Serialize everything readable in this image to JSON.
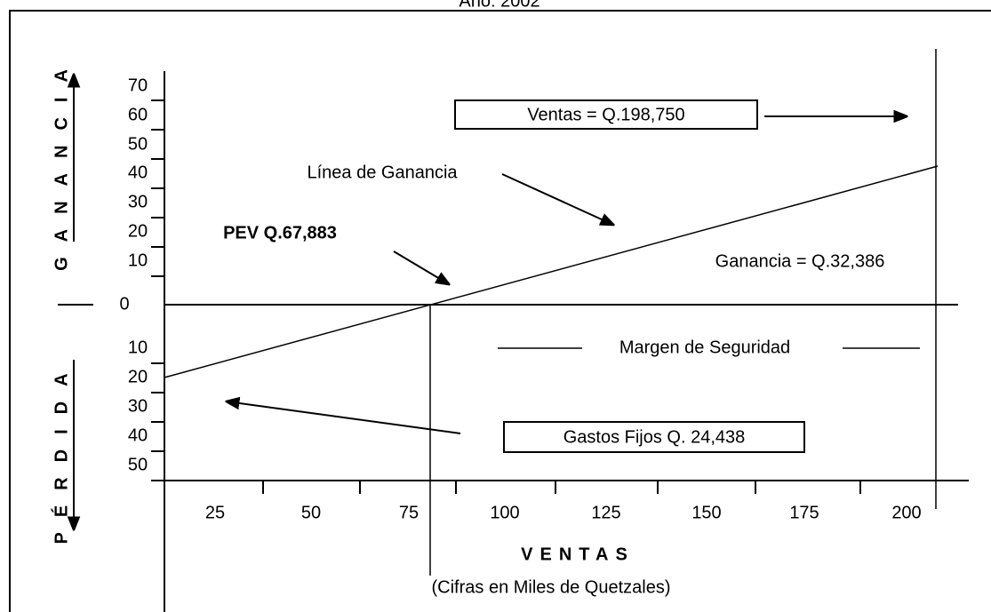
{
  "title": "Año: 2002",
  "profit_axis": {
    "label": "GANANCIA",
    "ticks": [
      70,
      60,
      50,
      40,
      30,
      20,
      10
    ],
    "zero": 0
  },
  "loss_axis": {
    "label": "PÉRDIDA",
    "ticks": [
      10,
      20,
      30,
      40,
      50
    ]
  },
  "x_axis": {
    "label": "VENTAS",
    "sublabel": "(Cifras en Miles de Quetzales)",
    "ticks": [
      25,
      50,
      75,
      100,
      125,
      150,
      175,
      200
    ]
  },
  "annotations": {
    "ventas": "Ventas = Q.198,750",
    "linea": "Línea de Ganancia",
    "pev": "PEV Q.67,883",
    "ganancia": "Ganancia = Q.32,386",
    "margen": "Margen de Seguridad",
    "gastos": "Gastos Fijos Q. 24,438"
  }
}
